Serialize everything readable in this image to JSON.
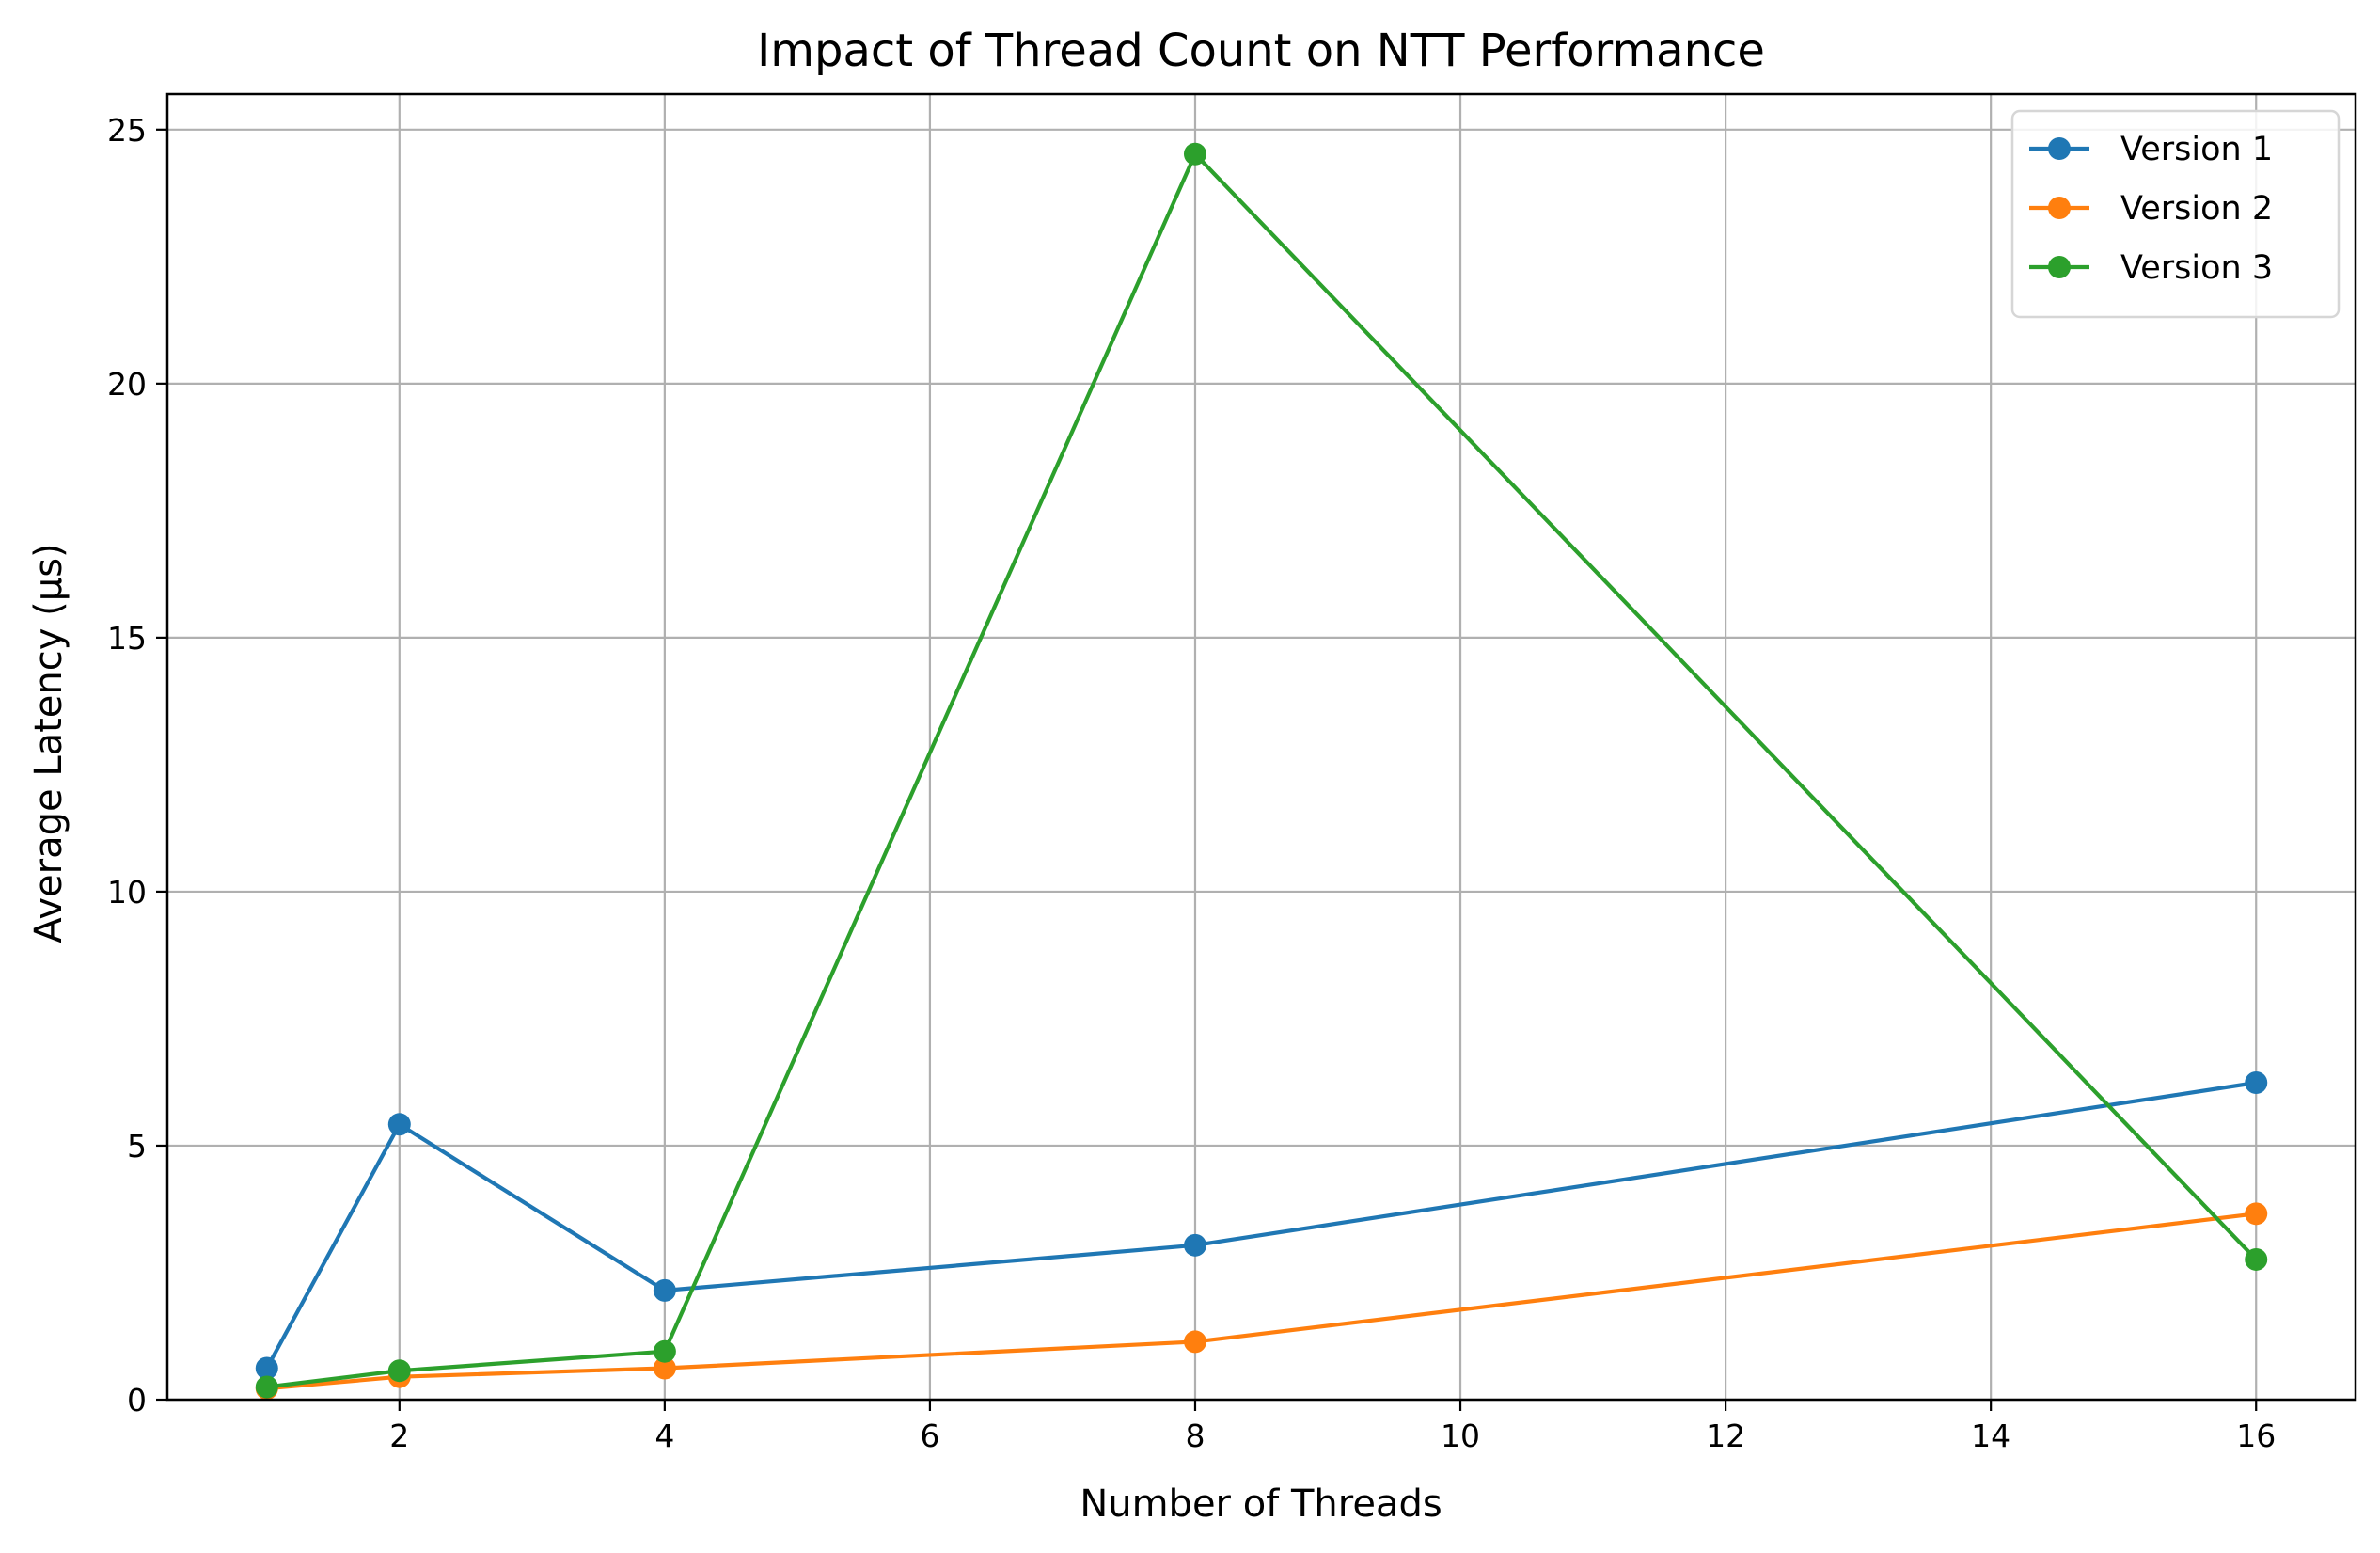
{
  "chart_data": {
    "type": "line",
    "title": "Impact of Thread Count on NTT Performance",
    "xlabel": "Number of Threads",
    "ylabel": "Average Latency (µs)",
    "x": [
      1,
      2,
      4,
      8,
      16
    ],
    "xlim": [
      0.25,
      16.75
    ],
    "ylim": [
      0,
      25.7
    ],
    "xticks": [
      2,
      4,
      6,
      8,
      10,
      12,
      14,
      16
    ],
    "yticks": [
      0,
      5,
      10,
      15,
      20,
      25
    ],
    "grid": true,
    "legend_position": "top-right",
    "marker": "circle",
    "series": [
      {
        "name": "Version 1",
        "color": "#1f77b4",
        "values": [
          0.62,
          5.42,
          2.15,
          3.04,
          6.24
        ]
      },
      {
        "name": "Version 2",
        "color": "#ff7f0e",
        "values": [
          0.22,
          0.45,
          0.62,
          1.14,
          3.66
        ]
      },
      {
        "name": "Version 3",
        "color": "#2ca02c",
        "values": [
          0.25,
          0.57,
          0.95,
          24.52,
          2.76
        ]
      }
    ]
  }
}
